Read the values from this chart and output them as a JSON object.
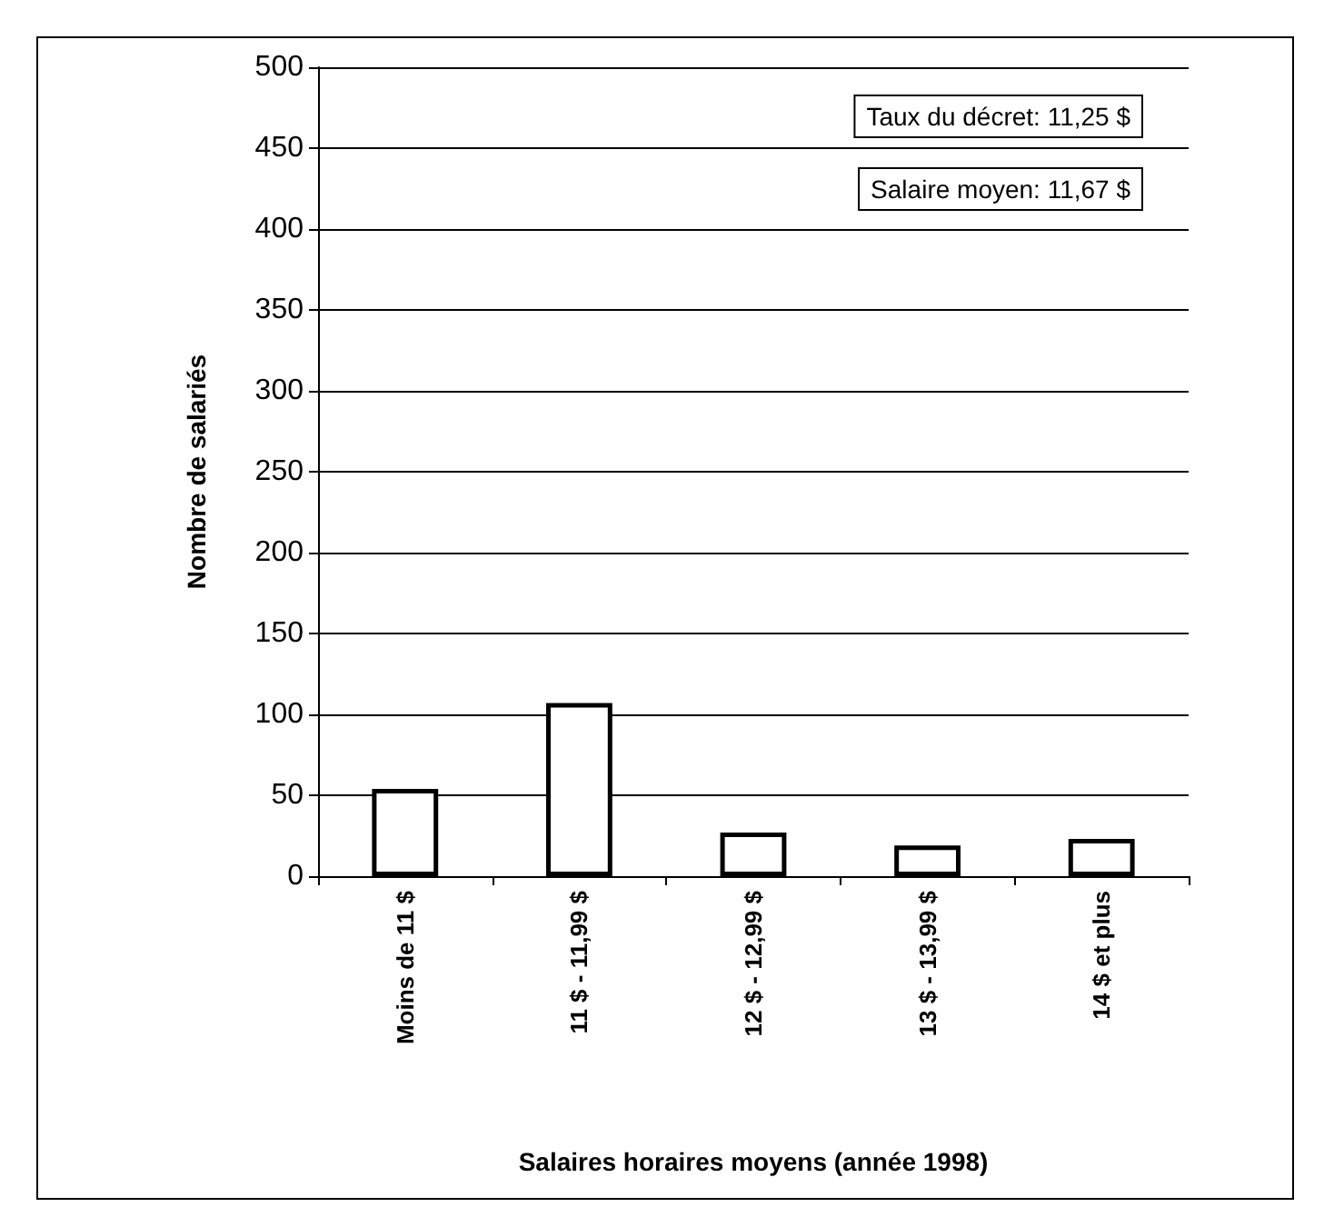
{
  "chart_data": {
    "type": "bar",
    "xlabel": "Salaires horaires moyens (année 1998)",
    "ylabel": "Nombre de salariés",
    "categories": [
      "Moins de 11 $",
      "11 $ - 11,99 $",
      "12 $ - 12,99 $",
      "13 $ - 13,99 $",
      "14 $ et plus"
    ],
    "values": [
      54,
      107,
      27,
      19,
      23
    ],
    "color": "#ffffff",
    "ylim": [
      0,
      500
    ],
    "yticks": [
      0,
      50,
      100,
      150,
      200,
      250,
      300,
      350,
      400,
      450,
      500
    ],
    "grid": "y",
    "annotations": [
      "Taux du décret: 11,25 $",
      "Salaire moyen: 11,67 $"
    ]
  }
}
